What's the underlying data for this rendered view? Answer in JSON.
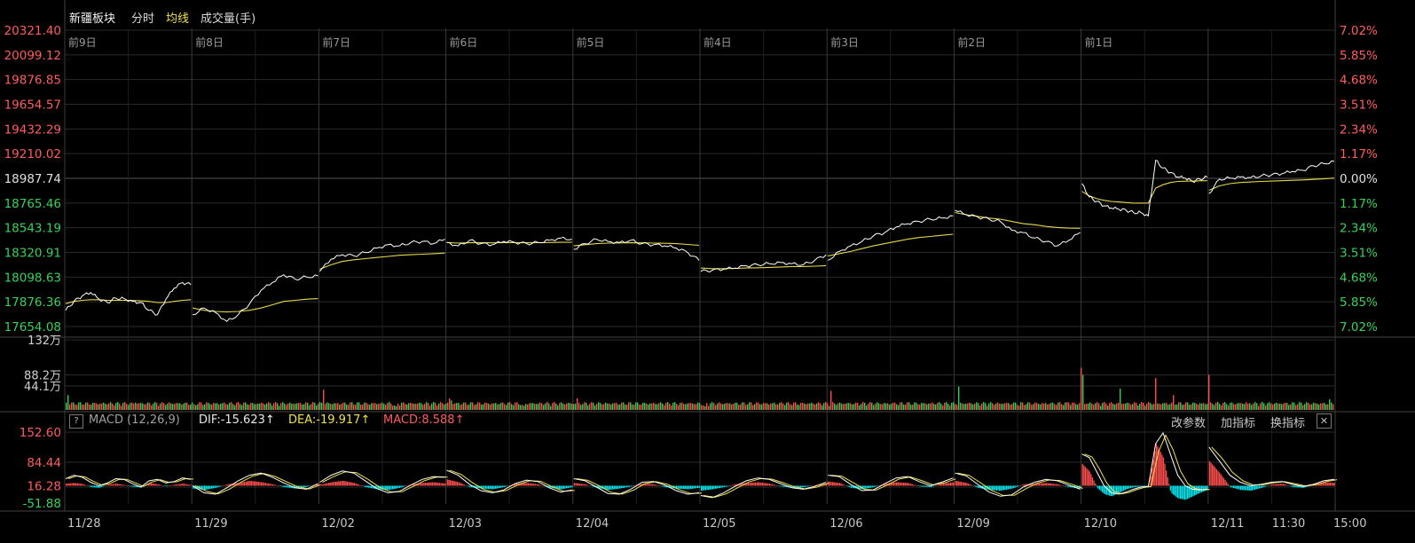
{
  "header": {
    "title": "新疆板块",
    "mode": "分时",
    "avg_label": "均线",
    "volume_label": "成交量(手)"
  },
  "macd_bar": {
    "help": "?",
    "name": "MACD (12,26,9)",
    "dif": "DIF:-15.623↑",
    "dea": "DEA:-19.917↑",
    "macd": "MACD:8.588↑",
    "params_button": "改参数",
    "add_button": "加指标",
    "switch_button": "换指标",
    "close": "✕"
  },
  "colors": {
    "background": "#000000",
    "grid": "#2a2a2a",
    "price_line": "#ffffff",
    "avg_line": "#e6d84a",
    "up": "#ff4d4d",
    "down": "#33cc55",
    "macd_negative": "#00e5ee",
    "dea_line": "#f0e14a",
    "dif_line": "#ffffff"
  },
  "chart_data": {
    "type": "line",
    "day_labels": [
      "前9日",
      "前8日",
      "前7日",
      "前6日",
      "前5日",
      "前4日",
      "前3日",
      "前2日",
      "前1日",
      ""
    ],
    "date_labels": [
      "11/28",
      "11/29",
      "12/02",
      "12/03",
      "12/04",
      "12/05",
      "12/06",
      "12/09",
      "12/10",
      "12/11",
      "11:30",
      "15:00"
    ],
    "price_axis": {
      "ticks": [
        "20321.40",
        "20099.12",
        "19876.85",
        "19654.57",
        "19432.29",
        "19210.02",
        "18987.74",
        "18765.46",
        "18543.19",
        "18320.91",
        "18098.63",
        "17876.36",
        "17654.08"
      ],
      "min": 17654.08,
      "max": 20321.4,
      "base": 18987.74
    },
    "pct_axis": {
      "ticks": [
        "7.02%",
        "5.85%",
        "4.68%",
        "3.51%",
        "2.34%",
        "1.17%",
        "0.00%",
        "1.17%",
        "2.34%",
        "3.51%",
        "4.68%",
        "5.85%",
        "7.02%"
      ]
    },
    "volume_axis": {
      "ticks": [
        "132万",
        "88.2万",
        "44.1万"
      ],
      "max": 132
    },
    "macd_axis": {
      "ticks": [
        "152.60",
        "84.44",
        "16.28",
        "-51.88"
      ],
      "min": -51.88,
      "max": 152.6
    },
    "series": [
      {
        "name": "分时",
        "days": [
          [
            17800,
            17880,
            17930,
            17960,
            17900,
            17870,
            17910,
            17905,
            17880,
            17870,
            17800,
            17760,
            17900,
            18000,
            18050,
            18030
          ],
          [
            17760,
            17820,
            17780,
            17700,
            17760,
            17860,
            17980,
            18050,
            18120,
            18080,
            18100,
            18110
          ],
          [
            18150,
            18260,
            18300,
            18290,
            18320,
            18360,
            18390,
            18380,
            18410,
            18420,
            18400,
            18440
          ],
          [
            18410,
            18380,
            18430,
            18400,
            18390,
            18420,
            18410,
            18400,
            18410,
            18430,
            18450,
            18440
          ],
          [
            18350,
            18400,
            18440,
            18420,
            18410,
            18430,
            18400,
            18390,
            18380,
            18360,
            18320,
            18250
          ],
          [
            18150,
            18160,
            18170,
            18180,
            18200,
            18210,
            18220,
            18230,
            18220,
            18210,
            18250,
            18300
          ],
          [
            18250,
            18330,
            18380,
            18420,
            18470,
            18500,
            18550,
            18580,
            18600,
            18620,
            18630,
            18650
          ],
          [
            18700,
            18660,
            18640,
            18620,
            18600,
            18520,
            18500,
            18450,
            18420,
            18380,
            18430,
            18500
          ],
          [
            18940,
            18820,
            18780,
            18740,
            18720,
            18710,
            18700,
            18680,
            18680,
            18650,
            19150,
            19080,
            19040,
            19000,
            18990,
            18960,
            18980,
            19000
          ],
          [
            18850,
            18980,
            18990,
            19000,
            18995,
            19010,
            19020,
            19030,
            19050,
            19060,
            19100,
            19120,
            19140
          ]
        ]
      },
      {
        "name": "均线",
        "days": [
          [
            17860,
            17880,
            17890,
            17895,
            17895,
            17890,
            17890,
            17890,
            17888,
            17885,
            17880,
            17870,
            17870,
            17880,
            17890,
            17895
          ],
          [
            17820,
            17800,
            17790,
            17785,
            17790,
            17800,
            17820,
            17850,
            17880,
            17890,
            17900,
            17905
          ],
          [
            18170,
            18210,
            18240,
            18255,
            18265,
            18275,
            18285,
            18295,
            18300,
            18305,
            18310,
            18315
          ],
          [
            18410,
            18405,
            18408,
            18408,
            18407,
            18409,
            18409,
            18408,
            18409,
            18410,
            18412,
            18413
          ],
          [
            18380,
            18390,
            18400,
            18405,
            18406,
            18408,
            18407,
            18405,
            18403,
            18400,
            18393,
            18385
          ],
          [
            18180,
            18175,
            18175,
            18177,
            18180,
            18183,
            18186,
            18190,
            18193,
            18194,
            18197,
            18202
          ],
          [
            18290,
            18310,
            18330,
            18355,
            18380,
            18400,
            18420,
            18440,
            18455,
            18465,
            18475,
            18485
          ],
          [
            18680,
            18660,
            18645,
            18630,
            18620,
            18600,
            18580,
            18570,
            18555,
            18545,
            18540,
            18538
          ],
          [
            18870,
            18830,
            18805,
            18790,
            18780,
            18775,
            18770,
            18765,
            18765,
            18765,
            18900,
            18930,
            18950,
            18960,
            18962,
            18963,
            18965,
            18966
          ],
          [
            18880,
            18920,
            18940,
            18950,
            18955,
            18960,
            18963,
            18966,
            18970,
            18973,
            18978,
            18983,
            18990
          ]
        ]
      }
    ],
    "volume": {
      "series_name": "成交量(手)",
      "spikes": [
        [
          0,
          0.02,
          28
        ],
        [
          0,
          0.55,
          14
        ],
        [
          1,
          0.02,
          18
        ],
        [
          1,
          0.48,
          22
        ],
        [
          2,
          0.03,
          38
        ],
        [
          2,
          0.6,
          14
        ],
        [
          3,
          0.03,
          36
        ],
        [
          3,
          0.6,
          16
        ],
        [
          4,
          0.03,
          22
        ],
        [
          4,
          0.7,
          12
        ],
        [
          5,
          0.03,
          14
        ],
        [
          5,
          0.65,
          12
        ],
        [
          6,
          0.03,
          36
        ],
        [
          6,
          0.55,
          18
        ],
        [
          7,
          0.03,
          44
        ],
        [
          7,
          0.5,
          16
        ],
        [
          7,
          0.9,
          14
        ],
        [
          8,
          0.0,
          132
        ],
        [
          8,
          0.3,
          40
        ],
        [
          8,
          0.58,
          60
        ],
        [
          8,
          0.72,
          28
        ],
        [
          9,
          0.0,
          66
        ],
        [
          9,
          0.3,
          24
        ],
        [
          9,
          0.95,
          20
        ]
      ],
      "baseline": 7
    },
    "macd": {
      "histogram_days": [
        [
          6,
          8,
          5,
          -4,
          -6,
          3,
          6,
          2,
          -3,
          -5,
          8,
          4,
          -2,
          3,
          6,
          2
        ],
        [
          -8,
          -12,
          -6,
          4,
          8,
          14,
          10,
          4,
          -4,
          -8,
          -3,
          6
        ],
        [
          3,
          10,
          14,
          8,
          -4,
          -10,
          -12,
          -6,
          4,
          8,
          10,
          6
        ],
        [
          18,
          10,
          -4,
          -8,
          -10,
          -4,
          6,
          8,
          4,
          -6,
          -10,
          -4
        ],
        [
          8,
          4,
          -6,
          -12,
          -8,
          -2,
          6,
          4,
          -4,
          -8,
          -10,
          -6
        ],
        [
          -14,
          -10,
          -4,
          4,
          8,
          10,
          6,
          -2,
          -6,
          -4,
          2,
          6
        ],
        [
          12,
          8,
          -6,
          -10,
          -4,
          6,
          10,
          8,
          -2,
          -4,
          6,
          10
        ],
        [
          14,
          8,
          -6,
          -12,
          -14,
          -8,
          4,
          6,
          8,
          4,
          -4,
          -8
        ],
        [
          62,
          40,
          -6,
          -24,
          -30,
          -20,
          -10,
          -4,
          -2,
          -4,
          120,
          80,
          -20,
          -36,
          -40,
          -30,
          -20,
          -12
        ],
        [
          70,
          36,
          -4,
          -12,
          -14,
          -6,
          4,
          6,
          -4,
          -6,
          4,
          10,
          8
        ]
      ],
      "dif_days": [
        [
          20,
          30,
          24,
          10,
          0,
          8,
          20,
          18,
          6,
          -4,
          14,
          18,
          8,
          12,
          22,
          18
        ],
        [
          0,
          -20,
          -24,
          -6,
          14,
          30,
          36,
          24,
          8,
          -6,
          -10,
          6
        ],
        [
          10,
          30,
          42,
          36,
          14,
          -8,
          -20,
          -16,
          2,
          18,
          26,
          24
        ],
        [
          44,
          30,
          4,
          -14,
          -20,
          -12,
          6,
          16,
          12,
          -6,
          -18,
          -12
        ],
        [
          20,
          14,
          -4,
          -22,
          -24,
          -10,
          10,
          12,
          2,
          -14,
          -24,
          -20
        ],
        [
          -28,
          -34,
          -20,
          -2,
          14,
          22,
          18,
          6,
          -6,
          -10,
          -2,
          10
        ],
        [
          30,
          26,
          4,
          -14,
          -12,
          6,
          22,
          26,
          12,
          0,
          10,
          22
        ],
        [
          36,
          28,
          4,
          -18,
          -30,
          -26,
          -4,
          10,
          18,
          14,
          2,
          -10
        ],
        [
          90,
          80,
          40,
          0,
          -20,
          -24,
          -18,
          -10,
          -4,
          -2,
          120,
          150,
          90,
          30,
          0,
          -10,
          -12,
          -10
        ],
        [
          110,
          70,
          30,
          10,
          0,
          4,
          10,
          12,
          4,
          -2,
          4,
          14,
          18
        ]
      ]
    }
  }
}
